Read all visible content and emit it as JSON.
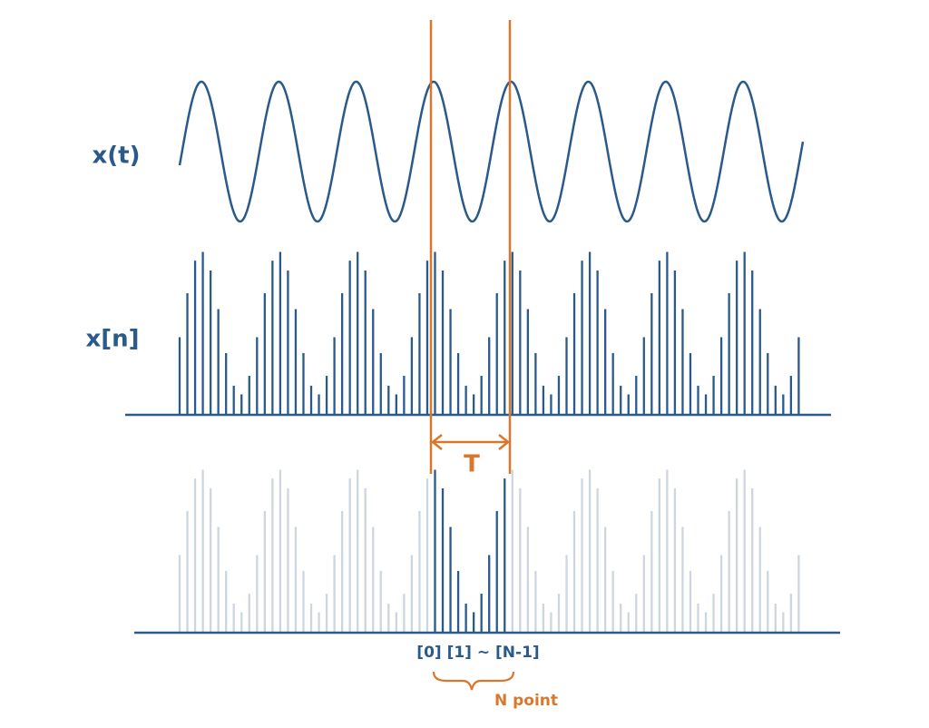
{
  "labels": {
    "continuous": "x(t)",
    "discrete": "x[n]"
  },
  "period": "T",
  "indices": "[0] [1] ~ [N-1]",
  "points": "N point"
}
